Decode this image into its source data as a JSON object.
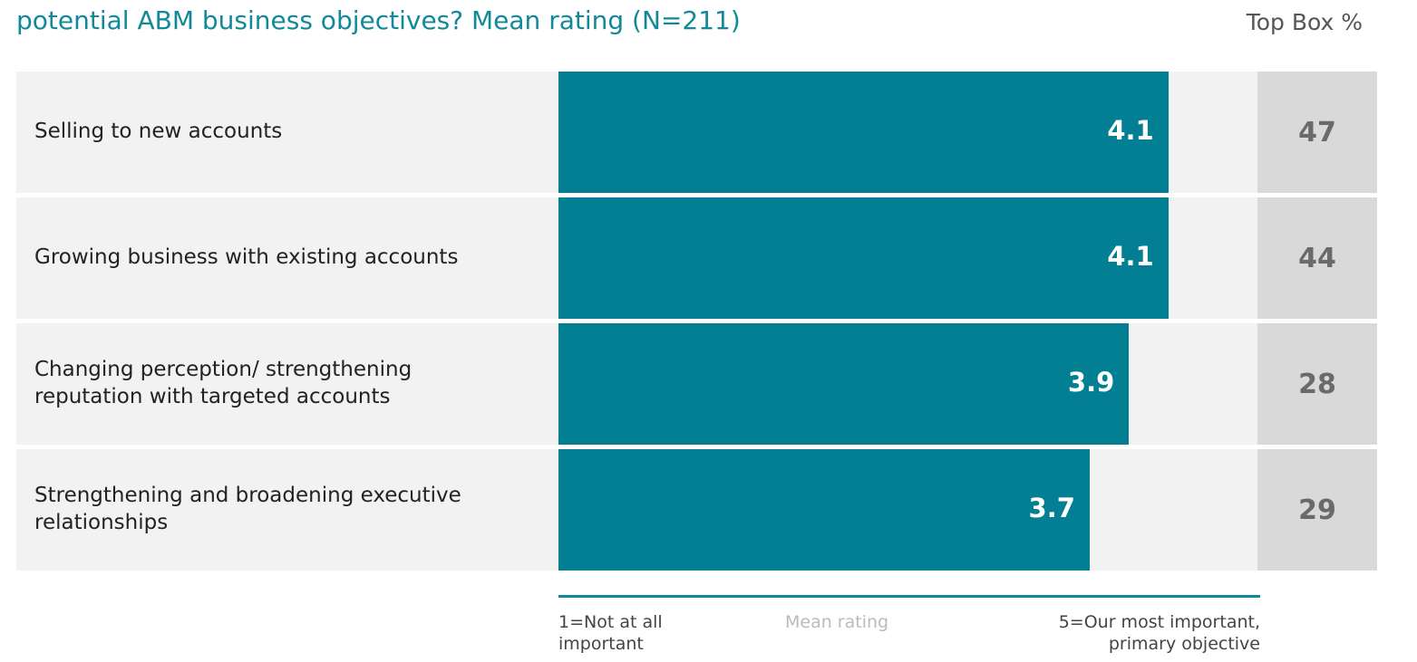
{
  "chart_data": {
    "type": "bar",
    "orientation": "horizontal",
    "title": "potential ABM business objectives? Mean rating (N=211)",
    "categories": [
      "Selling to new accounts",
      "Growing business with existing accounts",
      "Changing perception/ strengthening reputation with targeted accounts",
      "Strengthening and broadening executive relationships"
    ],
    "values": [
      4.1,
      4.1,
      3.9,
      3.7
    ],
    "color": "#037f93",
    "xlim": [
      1,
      5
    ],
    "x_label": "Mean rating",
    "x_min_label": "1=Not at all important",
    "x_max_label": "5=Our most important, primary objective",
    "top_box_header": "Top Box %",
    "top_box": [
      47,
      44,
      28,
      29
    ]
  }
}
